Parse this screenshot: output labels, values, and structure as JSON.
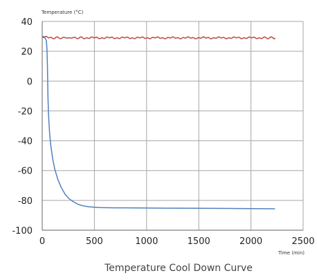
{
  "chart_data": {
    "type": "line",
    "title": "Temperature Cool Down Curve",
    "xlabel": "Time (min)",
    "ylabel": "Temperature (°C)",
    "xlim": [
      0,
      2500
    ],
    "ylim": [
      -100,
      40
    ],
    "x_ticks": [
      0,
      500,
      1000,
      1500,
      2000,
      2500
    ],
    "y_ticks": [
      40,
      20,
      0,
      -20,
      -40,
      -60,
      -80,
      -100
    ],
    "grid": true,
    "legend": "none",
    "colors": {
      "grid": "#a6a6a6",
      "axis": "#7f7f7f",
      "ambient_series": "#c0504d",
      "cooling_series": "#4f81bd"
    },
    "series": [
      {
        "color": "#c0504d",
        "noisy": true,
        "x": [
          0,
          100,
          250,
          400,
          500,
          700,
          900,
          1100,
          1300,
          1500,
          1700,
          1900,
          2100,
          2230
        ],
        "y": [
          29.5,
          29,
          29,
          29,
          29,
          29,
          29,
          29,
          29,
          29,
          29,
          29,
          29,
          29
        ]
      },
      {
        "color": "#4f81bd",
        "noisy": false,
        "x": [
          0,
          10,
          20,
          30,
          40,
          45,
          50,
          55,
          60,
          70,
          80,
          100,
          120,
          150,
          180,
          220,
          260,
          300,
          350,
          400,
          450,
          500,
          550,
          600,
          700,
          800,
          1000,
          1200,
          1500,
          1800,
          2000,
          2230
        ],
        "y": [
          30,
          30,
          29.5,
          28.5,
          27,
          22,
          10,
          -10,
          -22,
          -34,
          -42,
          -52,
          -59,
          -66,
          -71,
          -76,
          -79,
          -81,
          -82.8,
          -83.8,
          -84.3,
          -84.6,
          -84.8,
          -84.9,
          -85,
          -85,
          -85.1,
          -85.2,
          -85.3,
          -85.4,
          -85.5,
          -85.6
        ]
      }
    ]
  }
}
